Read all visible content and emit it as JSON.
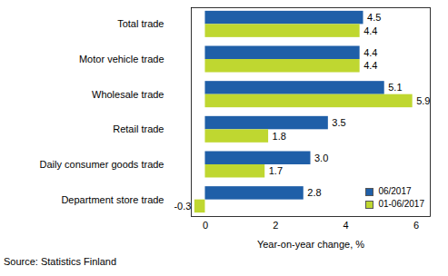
{
  "chart_data": {
    "type": "bar",
    "orientation": "horizontal",
    "categories": [
      "Total trade",
      "Motor vehicle trade",
      "Wholesale trade",
      "Retail trade",
      "Daily consumer goods trade",
      "Department store trade"
    ],
    "series": [
      {
        "name": "06/2017",
        "color": "#1f5fa8",
        "values": [
          4.5,
          4.4,
          5.1,
          3.5,
          3.0,
          2.8
        ],
        "value_labels": [
          "4.5",
          "4.4",
          "5.1",
          "3.5",
          "3.0",
          "2.8"
        ]
      },
      {
        "name": "01-06/2017",
        "color": "#bfd730",
        "values": [
          4.4,
          4.4,
          5.9,
          1.8,
          1.7,
          -0.3
        ],
        "value_labels": [
          "4.4",
          "4.4",
          "5.9",
          "1.8",
          "1.7",
          "-0.3"
        ]
      }
    ],
    "xlabel": "Year-on-year change, %",
    "xlim": [
      -0.4,
      6.4
    ],
    "xticks": [
      0,
      2,
      4,
      6
    ],
    "grid": false,
    "data_labels": true,
    "legend": "bottom-right",
    "caption": "Source: Statistics Finland"
  }
}
